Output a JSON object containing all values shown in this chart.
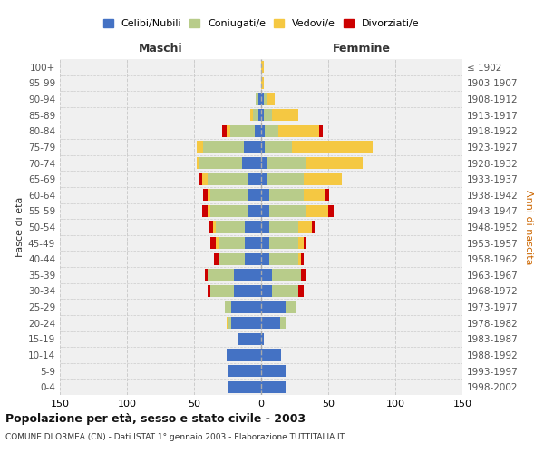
{
  "age_groups": [
    "0-4",
    "5-9",
    "10-14",
    "15-19",
    "20-24",
    "25-29",
    "30-34",
    "35-39",
    "40-44",
    "45-49",
    "50-54",
    "55-59",
    "60-64",
    "65-69",
    "70-74",
    "75-79",
    "80-84",
    "85-89",
    "90-94",
    "95-99",
    "100+"
  ],
  "birth_years": [
    "1998-2002",
    "1993-1997",
    "1988-1992",
    "1983-1987",
    "1978-1982",
    "1973-1977",
    "1968-1972",
    "1963-1967",
    "1958-1962",
    "1953-1957",
    "1948-1952",
    "1943-1947",
    "1938-1942",
    "1933-1937",
    "1928-1932",
    "1923-1927",
    "1918-1922",
    "1913-1917",
    "1908-1912",
    "1903-1907",
    "≤ 1902"
  ],
  "male": {
    "celibe": [
      24,
      24,
      26,
      17,
      22,
      22,
      20,
      20,
      12,
      12,
      12,
      10,
      10,
      10,
      14,
      13,
      5,
      2,
      2,
      0,
      0
    ],
    "coniugato": [
      0,
      0,
      0,
      0,
      2,
      5,
      18,
      20,
      20,
      20,
      22,
      28,
      28,
      30,
      32,
      30,
      18,
      4,
      2,
      0,
      0
    ],
    "vedovo": [
      0,
      0,
      0,
      0,
      2,
      0,
      0,
      0,
      0,
      2,
      2,
      2,
      2,
      4,
      2,
      5,
      3,
      2,
      0,
      0,
      0
    ],
    "divorziato": [
      0,
      0,
      0,
      0,
      0,
      0,
      2,
      2,
      3,
      4,
      3,
      4,
      3,
      2,
      0,
      0,
      3,
      0,
      0,
      0,
      0
    ]
  },
  "female": {
    "nubile": [
      18,
      18,
      15,
      2,
      14,
      18,
      8,
      8,
      6,
      6,
      6,
      6,
      6,
      4,
      4,
      3,
      3,
      2,
      2,
      0,
      0
    ],
    "coniugata": [
      0,
      0,
      0,
      0,
      4,
      8,
      20,
      22,
      22,
      22,
      22,
      28,
      26,
      28,
      30,
      20,
      10,
      6,
      2,
      0,
      0
    ],
    "vedova": [
      0,
      0,
      0,
      0,
      0,
      0,
      0,
      0,
      2,
      4,
      10,
      16,
      16,
      28,
      42,
      60,
      30,
      20,
      6,
      2,
      2
    ],
    "divorziata": [
      0,
      0,
      0,
      0,
      0,
      0,
      4,
      4,
      2,
      2,
      2,
      4,
      3,
      0,
      0,
      0,
      3,
      0,
      0,
      0,
      0
    ]
  },
  "colors": {
    "celibe": "#4472c4",
    "coniugato": "#b8cc8a",
    "vedovo": "#f5c842",
    "divorziato": "#cc0000"
  },
  "xlim": 150,
  "title": "Popolazione per età, sesso e stato civile - 2003",
  "subtitle": "COMUNE DI ORMEA (CN) - Dati ISTAT 1° gennaio 2003 - Elaborazione TUTTITALIA.IT",
  "ylabel_left": "Fasce di età",
  "ylabel_right": "Anni di nascita",
  "xlabel_left": "Maschi",
  "xlabel_right": "Femmine",
  "bg_color": "#f0f0f0",
  "grid_color": "#cccccc"
}
